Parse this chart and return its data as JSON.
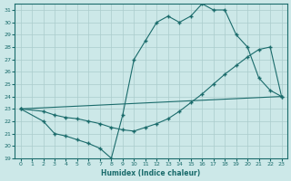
{
  "xlabel": "Humidex (Indice chaleur)",
  "bg_color": "#cce8e8",
  "grid_color": "#aacccc",
  "line_color": "#1a6b6b",
  "xlim": [
    -0.5,
    23.5
  ],
  "ylim": [
    19,
    31.5
  ],
  "xticks": [
    0,
    1,
    2,
    3,
    4,
    5,
    6,
    7,
    8,
    9,
    10,
    11,
    12,
    13,
    14,
    15,
    16,
    17,
    18,
    19,
    20,
    21,
    22,
    23
  ],
  "yticks": [
    19,
    20,
    21,
    22,
    23,
    24,
    25,
    26,
    27,
    28,
    29,
    30,
    31
  ],
  "line1_x": [
    0,
    2,
    3,
    4,
    5,
    6,
    7,
    8,
    9,
    10,
    11,
    12,
    13,
    14,
    15,
    16,
    17,
    18,
    19,
    20,
    21,
    22,
    23
  ],
  "line1_y": [
    23.0,
    22.0,
    21.0,
    20.8,
    20.5,
    20.2,
    19.8,
    19.0,
    22.5,
    27.0,
    28.5,
    30.0,
    30.5,
    30.0,
    30.5,
    31.5,
    31.0,
    31.0,
    29.0,
    28.0,
    25.5,
    24.5,
    24.0
  ],
  "line2_x": [
    0,
    23
  ],
  "line2_y": [
    23.0,
    24.0
  ],
  "line3_x": [
    0,
    2,
    3,
    4,
    5,
    6,
    7,
    8,
    9,
    10,
    11,
    12,
    13,
    14,
    15,
    16,
    17,
    18,
    19,
    20,
    21,
    22,
    23
  ],
  "line3_y": [
    23.0,
    22.8,
    22.5,
    22.3,
    22.2,
    22.0,
    21.8,
    21.5,
    21.3,
    21.2,
    21.5,
    21.8,
    22.2,
    22.8,
    23.5,
    24.2,
    25.0,
    25.8,
    26.5,
    27.2,
    27.8,
    28.0,
    24.0
  ]
}
